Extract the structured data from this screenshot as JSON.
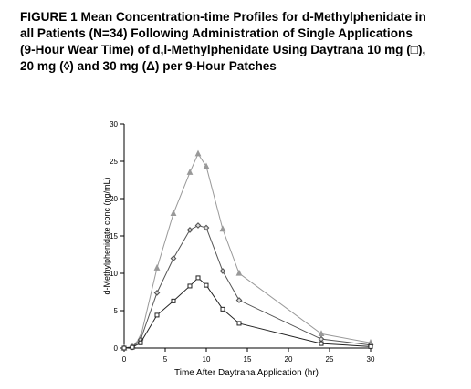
{
  "chart_data": {
    "type": "line",
    "title": [
      "FIGURE 1 Mean Concentration-time Profiles for d-Methylphenidate in",
      "all Patients (N=34) Following Administration of Single Applications",
      "(9-Hour Wear Time) of d,l-Methylphenidate Using Daytrana 10 mg (□),",
      "20 mg (◊) and 30 mg (Δ) per 9-Hour Patches"
    ],
    "x_label": "Time  After Daytrana Application (hr)",
    "y_label": "d-Methylphenidate conc (ng/mL)",
    "x": [
      0,
      1,
      2,
      4,
      6,
      8,
      9,
      10,
      12,
      14,
      24,
      30
    ],
    "series": [
      {
        "color": "#999999",
        "marker": "triangle",
        "values": [
          0,
          0.2,
          1.4,
          10.7,
          18,
          23.5,
          26,
          24.3,
          15.9,
          10,
          1.9,
          0.7
        ]
      },
      {
        "color": "#555555",
        "marker": "diamond",
        "values": [
          0,
          0.1,
          1.1,
          7.4,
          12,
          15.8,
          16.4,
          16.1,
          10.3,
          6.4,
          1.2,
          0.4
        ]
      },
      {
        "color": "#222222",
        "marker": "square",
        "values": [
          0,
          0.1,
          0.7,
          4.4,
          6.3,
          8.3,
          9.4,
          8.4,
          5.2,
          3.3,
          0.6,
          0.2
        ]
      }
    ],
    "xlim": [
      0,
      30
    ],
    "xticks": [
      0,
      5,
      10,
      15,
      20,
      25,
      30
    ],
    "ylim": [
      0,
      30
    ],
    "yticks": [
      0,
      5,
      10,
      15,
      20,
      25,
      30
    ],
    "grid": false
  }
}
